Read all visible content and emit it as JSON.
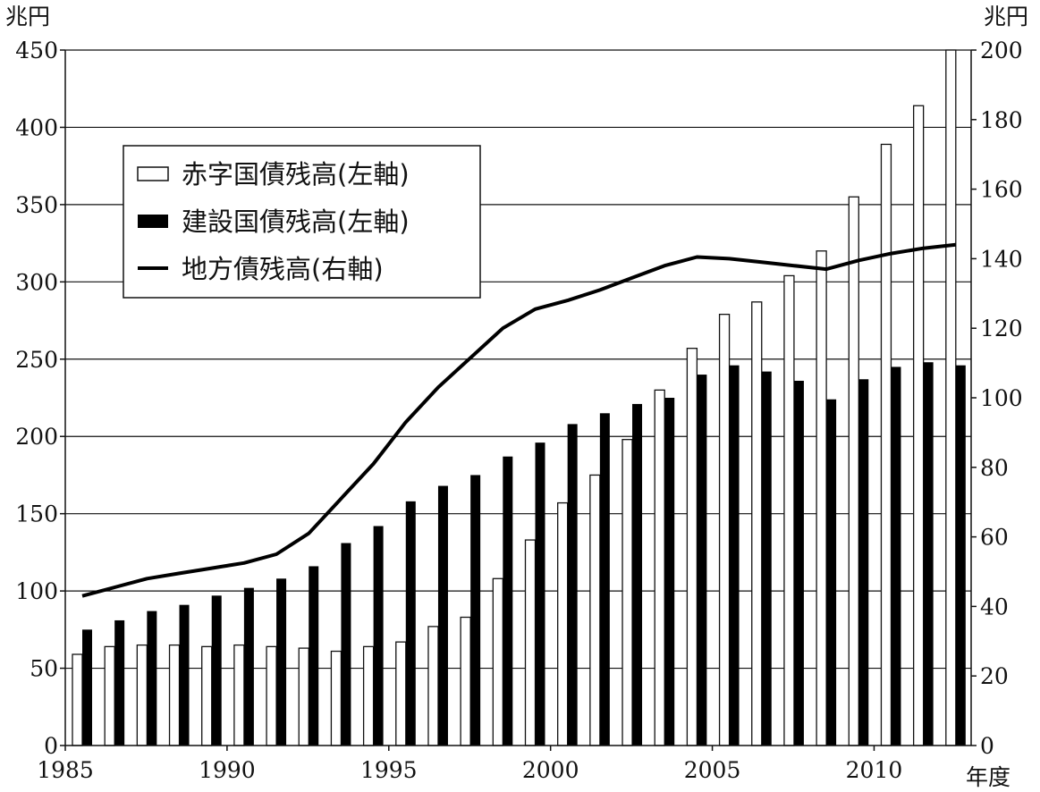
{
  "chart_data": {
    "type": "bar",
    "title": "",
    "left_axis_label": "兆円",
    "right_axis_label": "兆円",
    "x_axis_label": "年度",
    "x_tick_labels": [
      "1985",
      "1990",
      "1995",
      "2000",
      "2005",
      "2010"
    ],
    "left_ticks": [
      "0",
      "50",
      "100",
      "150",
      "200",
      "250",
      "300",
      "350",
      "400",
      "450"
    ],
    "right_ticks": [
      "0",
      "20",
      "40",
      "60",
      "80",
      "100",
      "120",
      "140",
      "160",
      "180",
      "200"
    ],
    "ylim_left": [
      0,
      450
    ],
    "ylim_right": [
      0,
      200
    ],
    "grid": true,
    "legend_position": "upper-left",
    "years": [
      1985,
      1986,
      1987,
      1988,
      1989,
      1990,
      1991,
      1992,
      1993,
      1994,
      1995,
      1996,
      1997,
      1998,
      1999,
      2000,
      2001,
      2002,
      2003,
      2004,
      2005,
      2006,
      2007,
      2008,
      2009,
      2010,
      2011,
      2012
    ],
    "series": [
      {
        "name": "赤字国債残高(左軸)",
        "type": "bar",
        "axis": "left",
        "color": "#ffffff",
        "values": [
          59,
          64,
          65,
          65,
          64,
          65,
          64,
          63,
          61,
          64,
          67,
          77,
          83,
          108,
          133,
          157,
          175,
          198,
          230,
          257,
          279,
          287,
          304,
          320,
          355,
          389,
          414,
          450
        ]
      },
      {
        "name": "建設国債残高(左軸)",
        "type": "bar",
        "axis": "left",
        "color": "#000000",
        "values": [
          75,
          81,
          87,
          91,
          97,
          102,
          108,
          116,
          131,
          142,
          158,
          168,
          175,
          187,
          196,
          208,
          215,
          221,
          225,
          240,
          246,
          242,
          236,
          224,
          237,
          245,
          248,
          246
        ]
      },
      {
        "name": "地方債残高(右軸)",
        "type": "line",
        "axis": "right",
        "color": "#000000",
        "values": [
          43,
          45.5,
          48,
          49.5,
          51,
          52.5,
          55,
          61,
          71,
          81,
          93,
          103,
          111.5,
          120,
          125.5,
          128,
          131,
          134.5,
          138,
          140.5,
          140,
          139,
          138,
          137,
          139.5,
          141.5,
          143,
          144
        ]
      }
    ]
  }
}
